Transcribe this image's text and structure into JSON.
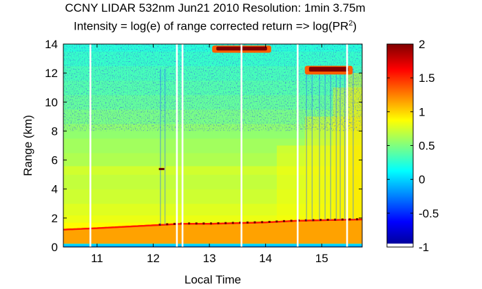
{
  "chart_data": {
    "type": "heatmap",
    "title_line1": "CCNY LIDAR 532nm Jun21 2010 Resolution: 1min 3.75m",
    "title_line2_prefix": "Intensity = log(e) of range corrected return => log(PR",
    "title_line2_sup": "2",
    "title_line2_suffix": ")",
    "xlabel": "Local Time",
    "ylabel": "Range (km)",
    "xlim": [
      10.4,
      15.72
    ],
    "ylim": [
      0,
      14
    ],
    "xticks": [
      11,
      12,
      13,
      14,
      15
    ],
    "yticks": [
      0,
      2,
      4,
      6,
      8,
      10,
      12,
      14
    ],
    "colorbar": {
      "range": [
        -1,
        2
      ],
      "ticks": [
        -1,
        -0.5,
        0,
        0.5,
        1,
        1.5,
        2
      ],
      "colormap": "jet"
    },
    "boundary_layer_top_km": [
      [
        10.4,
        1.2
      ],
      [
        11.0,
        1.3
      ],
      [
        11.5,
        1.4
      ],
      [
        12.0,
        1.5
      ],
      [
        12.5,
        1.6
      ],
      [
        13.0,
        1.6
      ],
      [
        13.5,
        1.65
      ],
      [
        14.0,
        1.7
      ],
      [
        14.5,
        1.8
      ],
      [
        15.0,
        1.85
      ],
      [
        15.72,
        1.9
      ]
    ],
    "cloud_layers": [
      {
        "x_start": 13.05,
        "x_end": 14.1,
        "y_bottom_km": 13.4,
        "y_top_km": 13.9,
        "peak_value": 2
      },
      {
        "x_start": 14.7,
        "x_end": 15.55,
        "y_bottom_km": 11.9,
        "y_top_km": 12.5,
        "peak_value": 2
      }
    ],
    "data_gaps_local_time": [
      10.88,
      12.42,
      12.52,
      13.57,
      14.57,
      15.45
    ]
  }
}
